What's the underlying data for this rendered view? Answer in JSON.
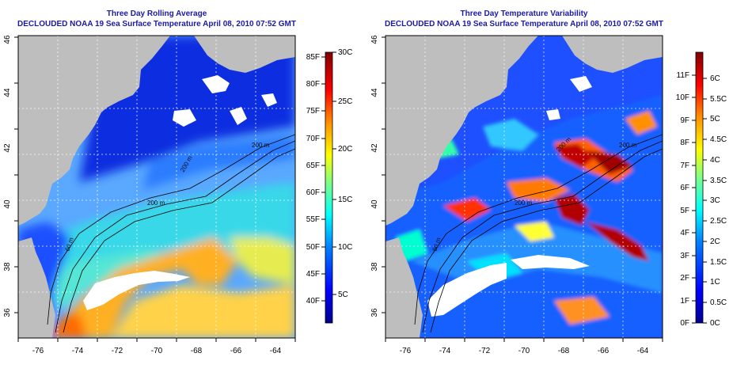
{
  "panels": [
    {
      "id": "avg",
      "title": "Three Day Rolling Average",
      "subtitle": "DECLOUDED NOAA 19 Sea Surface Temperature April 08, 2010 07:52 GMT",
      "lon_ticks": [
        "-76",
        "-74",
        "-72",
        "-70",
        "-68",
        "-66",
        "-64"
      ],
      "lat_ticks": [
        "36",
        "38",
        "40",
        "42",
        "44",
        "46"
      ],
      "colorbar": {
        "f_labels": [
          "40F",
          "45F",
          "50F",
          "55F",
          "60F",
          "65F",
          "70F",
          "75F",
          "80F",
          "85F"
        ],
        "c_labels": [
          "5C",
          "10C",
          "15C",
          "20C",
          "25C",
          "30C"
        ]
      },
      "isobath_labels": [
        "200 m",
        "200 m",
        "60 m",
        "200 m"
      ]
    },
    {
      "id": "var",
      "title": "Three Day Temperature Variability",
      "subtitle": "DECLOUDED NOAA 19 Sea Surface Temperature April 08, 2010 07:52 GMT",
      "lon_ticks": [
        "-76",
        "-74",
        "-72",
        "-70",
        "-68",
        "-66",
        "-64"
      ],
      "lat_ticks": [
        "36",
        "38",
        "40",
        "42",
        "44",
        "46"
      ],
      "colorbar": {
        "f_labels": [
          "0F",
          "1F",
          "2F",
          "3F",
          "4F",
          "5F",
          "6F",
          "7F",
          "8F",
          "9F",
          "10F",
          "11F"
        ],
        "c_labels": [
          "0C",
          "0.5C",
          "1C",
          "1.5C",
          "2C",
          "2.5C",
          "3C",
          "3.5C",
          "4C",
          "4.5C",
          "5C",
          "5.5C",
          "6C"
        ]
      },
      "isobath_labels": [
        "200 m",
        "200 m",
        "60 m",
        "200 m"
      ]
    }
  ],
  "colors": {
    "land": "#bebebe",
    "cloud": "#ffffff",
    "title": "#1a1aa6",
    "scale": [
      "#00008f",
      "#0000ff",
      "#0080ff",
      "#00ffff",
      "#80ff80",
      "#ffff00",
      "#ff8000",
      "#ff0000",
      "#800000"
    ]
  }
}
